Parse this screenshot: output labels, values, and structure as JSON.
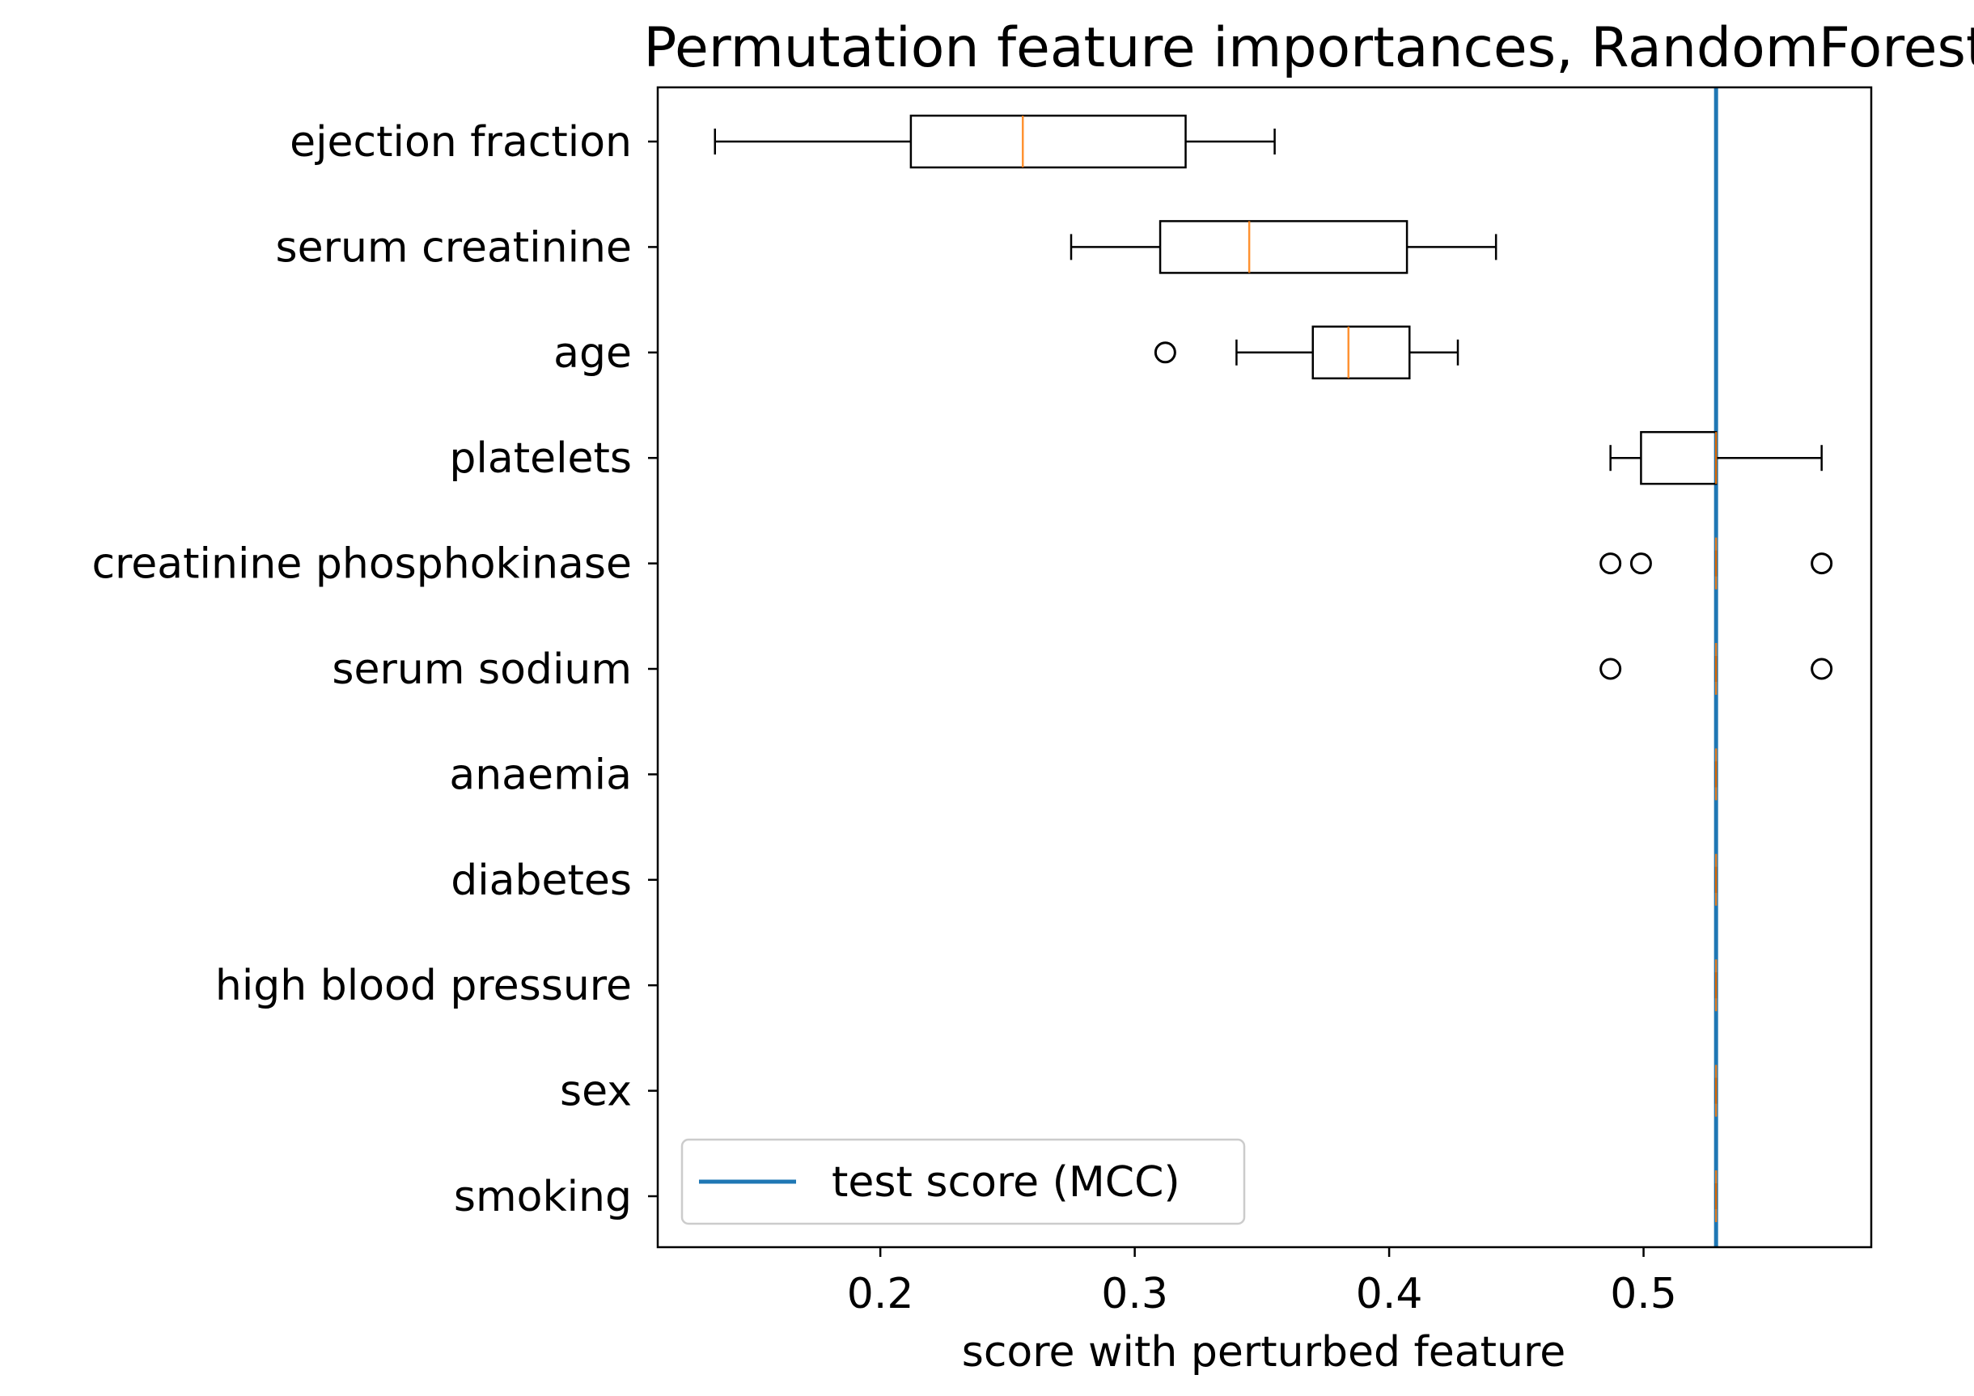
{
  "chart_data": {
    "type": "boxplot",
    "orientation": "horizontal",
    "title": "Permutation feature importances, RandomForest",
    "xlabel": "score with perturbed feature",
    "ylabel": "",
    "xlim": [
      0.1125,
      0.5895
    ],
    "xticks": [
      "0.2",
      "0.3",
      "0.4",
      "0.5"
    ],
    "xtick_values": [
      0.2,
      0.3,
      0.4,
      0.5
    ],
    "grid": false,
    "legend": {
      "placement": "lower-left",
      "entries": [
        {
          "label": "test score (MCC)",
          "color": "#1f77b4"
        }
      ]
    },
    "reference_line": {
      "label": "test score (MCC)",
      "value": 0.5285,
      "color": "#1f77b4"
    },
    "box_color": "#000000",
    "median_color": "#ff7f0e",
    "categories": [
      "ejection fraction",
      "serum creatinine",
      "age",
      "platelets",
      "creatinine phosphokinase",
      "serum sodium",
      "anaemia",
      "diabetes",
      "high blood pressure",
      "sex",
      "smoking"
    ],
    "boxes": [
      {
        "name": "ejection fraction",
        "whislo": 0.135,
        "q1": 0.212,
        "med": 0.256,
        "q3": 0.32,
        "whishi": 0.355,
        "fliers": []
      },
      {
        "name": "serum creatinine",
        "whislo": 0.275,
        "q1": 0.31,
        "med": 0.345,
        "q3": 0.407,
        "whishi": 0.442,
        "fliers": []
      },
      {
        "name": "age",
        "whislo": 0.34,
        "q1": 0.37,
        "med": 0.384,
        "q3": 0.408,
        "whishi": 0.427,
        "fliers": [
          0.312
        ]
      },
      {
        "name": "platelets",
        "whislo": 0.487,
        "q1": 0.499,
        "med": 0.5285,
        "q3": 0.5285,
        "whishi": 0.57,
        "fliers": []
      },
      {
        "name": "creatinine phosphokinase",
        "whislo": 0.5285,
        "q1": 0.5285,
        "med": 0.5285,
        "q3": 0.5285,
        "whishi": 0.5285,
        "fliers": [
          0.487,
          0.499,
          0.57
        ]
      },
      {
        "name": "serum sodium",
        "whislo": 0.5285,
        "q1": 0.5285,
        "med": 0.5285,
        "q3": 0.5285,
        "whishi": 0.5285,
        "fliers": [
          0.487,
          0.57
        ]
      },
      {
        "name": "anaemia",
        "whislo": 0.5285,
        "q1": 0.5285,
        "med": 0.5285,
        "q3": 0.5285,
        "whishi": 0.5285,
        "fliers": []
      },
      {
        "name": "diabetes",
        "whislo": 0.5285,
        "q1": 0.5285,
        "med": 0.5285,
        "q3": 0.5285,
        "whishi": 0.5285,
        "fliers": []
      },
      {
        "name": "high blood pressure",
        "whislo": 0.5285,
        "q1": 0.5285,
        "med": 0.5285,
        "q3": 0.5285,
        "whishi": 0.5285,
        "fliers": []
      },
      {
        "name": "sex",
        "whislo": 0.5285,
        "q1": 0.5285,
        "med": 0.5285,
        "q3": 0.5285,
        "whishi": 0.5285,
        "fliers": []
      },
      {
        "name": "smoking",
        "whislo": 0.5285,
        "q1": 0.5285,
        "med": 0.5285,
        "q3": 0.5285,
        "whishi": 0.5285,
        "fliers": []
      }
    ]
  }
}
